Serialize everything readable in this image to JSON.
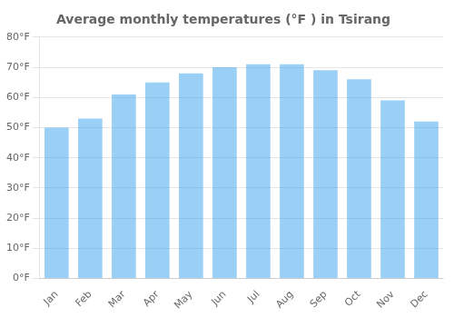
{
  "chart_data": {
    "type": "bar",
    "title": "Average monthly temperatures (°F ) in Tsirang",
    "categories": [
      "Jan",
      "Feb",
      "Mar",
      "Apr",
      "May",
      "Jun",
      "Jul",
      "Aug",
      "Sep",
      "Oct",
      "Nov",
      "Dec"
    ],
    "values": [
      50,
      53,
      61,
      65,
      68,
      70,
      71,
      71,
      69,
      66,
      59,
      52
    ],
    "ylim": [
      0,
      80
    ],
    "yticks": [
      {
        "value": 0,
        "label": "0°F"
      },
      {
        "value": 10,
        "label": "10°F"
      },
      {
        "value": 20,
        "label": "20°F"
      },
      {
        "value": 30,
        "label": "30°F"
      },
      {
        "value": 40,
        "label": "40°F"
      },
      {
        "value": 50,
        "label": "50°F"
      },
      {
        "value": 60,
        "label": "60°F"
      },
      {
        "value": 70,
        "label": "70°F"
      },
      {
        "value": 80,
        "label": "80°F"
      }
    ],
    "grid": true
  }
}
